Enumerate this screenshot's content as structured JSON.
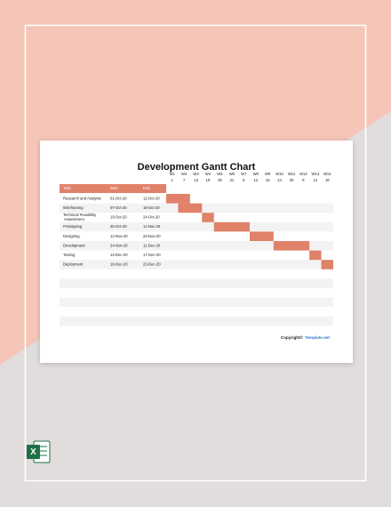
{
  "document": {
    "title": "Development Gantt Chart",
    "columns": [
      "Task",
      "Start",
      "End"
    ],
    "weeks": [
      {
        "label": "W1",
        "day": "1"
      },
      {
        "label": "W2",
        "day": "7"
      },
      {
        "label": "W3",
        "day": "13"
      },
      {
        "label": "W4",
        "day": "19"
      },
      {
        "label": "W5",
        "day": "25"
      },
      {
        "label": "W6",
        "day": "31"
      },
      {
        "label": "W7",
        "day": "6"
      },
      {
        "label": "W8",
        "day": "12"
      },
      {
        "label": "W9",
        "day": "18"
      },
      {
        "label": "W10",
        "day": "24"
      },
      {
        "label": "W11",
        "day": "30"
      },
      {
        "label": "W12",
        "day": "6"
      },
      {
        "label": "W13",
        "day": "12"
      },
      {
        "label": "W14",
        "day": "18"
      }
    ],
    "tasks": [
      {
        "task": "Research and Analysis",
        "start": "01-Oct-20",
        "end": "12-Oct-20",
        "weeks": [
          1,
          2
        ]
      },
      {
        "task": "Wireframing",
        "start": "07-Oct-20",
        "end": "18-Oct-20",
        "weeks": [
          2,
          3
        ]
      },
      {
        "task": "Technical Feasibility Assessment",
        "start": "19-Oct-20",
        "end": "24-Oct-20",
        "weeks": [
          4,
          4
        ]
      },
      {
        "task": "Prototyping",
        "start": "25-Oct-20",
        "end": "11-Nov-20",
        "weeks": [
          5,
          7
        ]
      },
      {
        "task": "Designing",
        "start": "12-Nov-20",
        "end": "23-Nov-20",
        "weeks": [
          8,
          9
        ]
      },
      {
        "task": "Development",
        "start": "24-Nov-20",
        "end": "11-Dec-20",
        "weeks": [
          10,
          12
        ]
      },
      {
        "task": "Testing",
        "start": "12-Dec-20",
        "end": "17-Dec-20",
        "weeks": [
          13,
          13
        ]
      },
      {
        "task": "Deployment",
        "start": "18-Dec-20",
        "end": "23-Dec-20",
        "weeks": [
          14,
          14
        ]
      }
    ],
    "copyright": "Copyright©",
    "brand": "Template.net"
  }
}
